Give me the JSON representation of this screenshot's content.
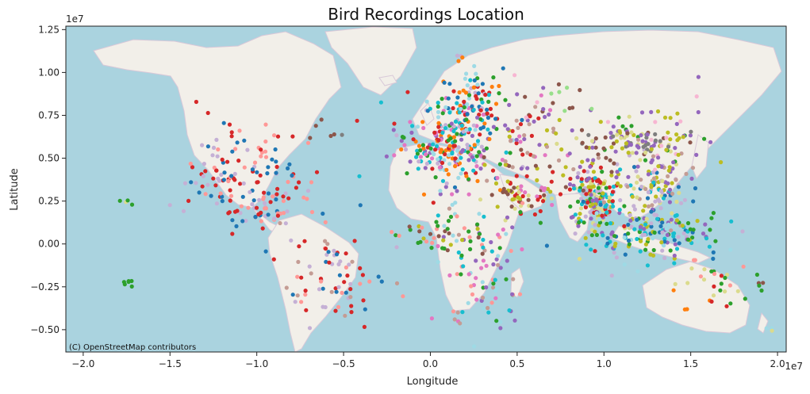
{
  "chart_data": {
    "type": "scatter",
    "title": "Bird Recordings Location",
    "xlabel": "Longitude",
    "ylabel": "Latitude",
    "x_offset_label": "1e7",
    "y_offset_label": "1e7",
    "xlim": [
      -2.1,
      2.05
    ],
    "ylim": [
      -0.63,
      1.27
    ],
    "x_ticks": [
      -2.0,
      -1.5,
      -1.0,
      -0.5,
      0.0,
      0.5,
      1.0,
      1.5,
      2.0
    ],
    "x_tick_labels": [
      "−2.0",
      "−1.5",
      "−1.0",
      "−0.5",
      "0.0",
      "0.5",
      "1.0",
      "1.5",
      "2.0"
    ],
    "y_ticks": [
      -0.5,
      -0.25,
      0.0,
      0.25,
      0.5,
      0.75,
      1.0,
      1.25
    ],
    "y_tick_labels": [
      "−0.50",
      "−0.25",
      "0.00",
      "0.25",
      "0.50",
      "0.75",
      "1.00",
      "1.25"
    ],
    "grid": false,
    "basemap_attribution": "(C) OpenStreetMap contributors",
    "colors": {
      "ocean": "#aad3df",
      "land": "#f2efe9",
      "border": "#d8c8d8"
    },
    "palette": [
      "#1f77b4",
      "#ff7f0e",
      "#2ca02c",
      "#d62728",
      "#9467bd",
      "#8c564b",
      "#e377c2",
      "#7f7f7f",
      "#bcbd22",
      "#17becf",
      "#aec7e8",
      "#98df8a",
      "#ff9896",
      "#c5b0d5",
      "#c49c94",
      "#f7b6d2",
      "#dbdb8d",
      "#9edae5"
    ],
    "clusters": [
      {
        "x": 0.1,
        "y": 0.58,
        "sx": 0.15,
        "sy": 0.12,
        "n": 220,
        "colors": [
          9,
          17,
          6,
          4,
          3,
          2,
          13,
          1
        ]
      },
      {
        "x": 0.2,
        "y": 0.78,
        "sx": 0.1,
        "sy": 0.15,
        "n": 120,
        "colors": [
          9,
          17,
          0,
          2,
          1,
          3,
          13
        ]
      },
      {
        "x": -0.6,
        "y": 0.65,
        "sx": 0.08,
        "sy": 0.05,
        "n": 6,
        "colors": [
          5,
          7
        ]
      },
      {
        "x": 0.55,
        "y": 0.58,
        "sx": 0.15,
        "sy": 0.12,
        "n": 60,
        "colors": [
          4,
          5,
          6,
          8,
          14,
          3
        ]
      },
      {
        "x": 0.5,
        "y": 0.3,
        "sx": 0.12,
        "sy": 0.07,
        "n": 60,
        "colors": [
          8,
          5,
          6,
          3,
          16
        ]
      },
      {
        "x": 0.95,
        "y": 0.25,
        "sx": 0.08,
        "sy": 0.1,
        "n": 180,
        "colors": [
          4,
          8,
          9,
          16,
          13,
          2,
          3
        ]
      },
      {
        "x": 1.3,
        "y": 0.32,
        "sx": 0.1,
        "sy": 0.12,
        "n": 120,
        "colors": [
          4,
          8,
          16,
          9,
          13,
          0,
          14
        ]
      },
      {
        "x": 1.3,
        "y": 0.05,
        "sx": 0.2,
        "sy": 0.08,
        "n": 150,
        "colors": [
          9,
          0,
          8,
          13,
          17,
          4,
          2
        ]
      },
      {
        "x": 1.2,
        "y": 0.6,
        "sx": 0.2,
        "sy": 0.05,
        "n": 80,
        "colors": [
          4,
          5,
          7,
          8,
          16,
          2
        ]
      },
      {
        "x": 0.95,
        "y": 0.5,
        "sx": 0.25,
        "sy": 0.1,
        "n": 50,
        "colors": [
          8,
          14,
          5,
          4
        ]
      },
      {
        "x": 0.3,
        "y": -0.15,
        "sx": 0.12,
        "sy": 0.2,
        "n": 100,
        "colors": [
          4,
          6,
          12,
          9,
          2,
          14,
          17
        ]
      },
      {
        "x": 0.05,
        "y": 0.05,
        "sx": 0.15,
        "sy": 0.05,
        "n": 40,
        "colors": [
          8,
          5,
          12,
          2
        ]
      },
      {
        "x": -1.2,
        "y": 0.4,
        "sx": 0.1,
        "sy": 0.15,
        "n": 80,
        "colors": [
          3,
          0,
          12,
          13
        ]
      },
      {
        "x": -0.95,
        "y": 0.22,
        "sx": 0.12,
        "sy": 0.08,
        "n": 60,
        "colors": [
          3,
          13,
          0,
          12
        ]
      },
      {
        "x": -0.85,
        "y": 0.45,
        "sx": 0.1,
        "sy": 0.1,
        "n": 30,
        "colors": [
          0,
          12,
          3
        ]
      },
      {
        "x": -0.55,
        "y": -0.2,
        "sx": 0.15,
        "sy": 0.15,
        "n": 80,
        "colors": [
          12,
          13,
          3,
          0,
          14
        ]
      },
      {
        "x": 1.6,
        "y": -0.25,
        "sx": 0.12,
        "sy": 0.1,
        "n": 30,
        "colors": [
          1,
          3,
          16,
          2,
          12
        ]
      },
      {
        "x": 1.4,
        "y": 0.6,
        "sx": 0.1,
        "sy": 0.15,
        "n": 30,
        "colors": [
          4,
          8,
          15
        ]
      },
      {
        "x": 0.8,
        "y": 0.8,
        "sx": 0.3,
        "sy": 0.1,
        "n": 25,
        "colors": [
          4,
          11,
          5,
          15
        ]
      },
      {
        "x": -1.75,
        "y": -0.22,
        "sx": 0.02,
        "sy": 0.02,
        "n": 6,
        "colors": [
          2
        ]
      },
      {
        "x": -1.75,
        "y": 0.24,
        "sx": 0.02,
        "sy": 0.01,
        "n": 4,
        "colors": [
          16,
          2
        ]
      },
      {
        "x": 1.9,
        "y": -0.2,
        "sx": 0.05,
        "sy": 0.05,
        "n": 5,
        "colors": [
          2,
          5
        ]
      },
      {
        "x": 1.95,
        "y": -0.5,
        "sx": 0.02,
        "sy": 0.02,
        "n": 3,
        "colors": [
          16,
          17
        ]
      }
    ]
  }
}
